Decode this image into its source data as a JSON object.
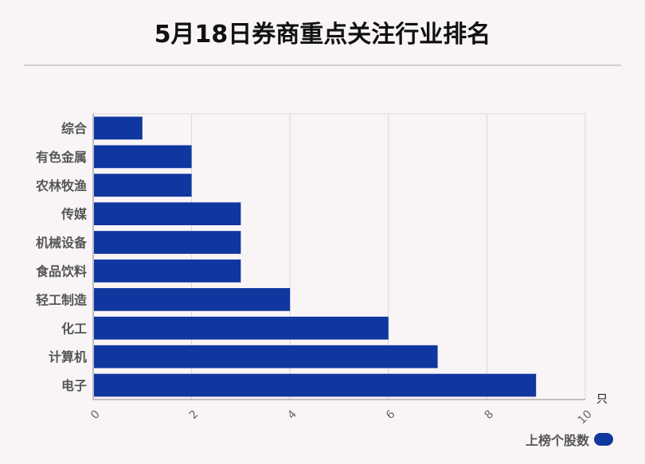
{
  "page": {
    "title": "5月18日券商重点关注行业排名"
  },
  "chart_data": {
    "type": "bar",
    "orientation": "horizontal",
    "title": "5月18日券商重点关注行业排名",
    "categories": [
      "综合",
      "有色金属",
      "农林牧渔",
      "传媒",
      "机械设备",
      "食品饮料",
      "轻工制造",
      "化工",
      "计算机",
      "电子"
    ],
    "series": [
      {
        "name": "上榜个股数",
        "values": [
          1,
          2,
          2,
          3,
          3,
          3,
          4,
          6,
          7,
          9
        ]
      }
    ],
    "xlim": [
      0,
      10
    ],
    "xticks": [
      "0",
      "2",
      "4",
      "6",
      "8",
      "10"
    ],
    "x_unit": "只",
    "grid": true,
    "legend_position": "bottom-right",
    "colors": {
      "bar": "#1036a0",
      "grid": "#d6d6d6",
      "axis": "#888888"
    }
  }
}
